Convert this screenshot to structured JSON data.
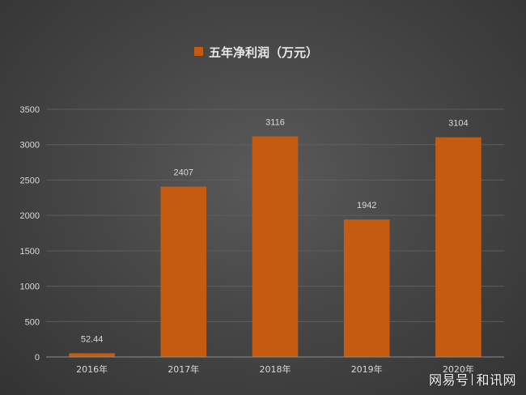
{
  "chart_data": {
    "type": "bar",
    "legend": {
      "name": "五年净利润（万元）",
      "placement": "top-center"
    },
    "categories": [
      "2016年",
      "2017年",
      "2018年",
      "2019年",
      "2020年"
    ],
    "series": [
      {
        "name": "五年净利润（万元）",
        "values": [
          52.44,
          2407,
          3116,
          1942,
          3104
        ]
      }
    ],
    "data_labels": [
      "52.44",
      "2407",
      "3116",
      "1942",
      "3104"
    ],
    "ylim": [
      0,
      3500
    ],
    "yticks": [
      0,
      500,
      1000,
      1500,
      2000,
      2500,
      3000,
      3500
    ],
    "grid": true,
    "colors": {
      "bar": "#c55a11",
      "text": "#d9d9d9",
      "grid": "#5e5e5e",
      "axis": "#8c8c8c"
    }
  },
  "watermark": {
    "left": "网易号",
    "right": "和讯网"
  }
}
